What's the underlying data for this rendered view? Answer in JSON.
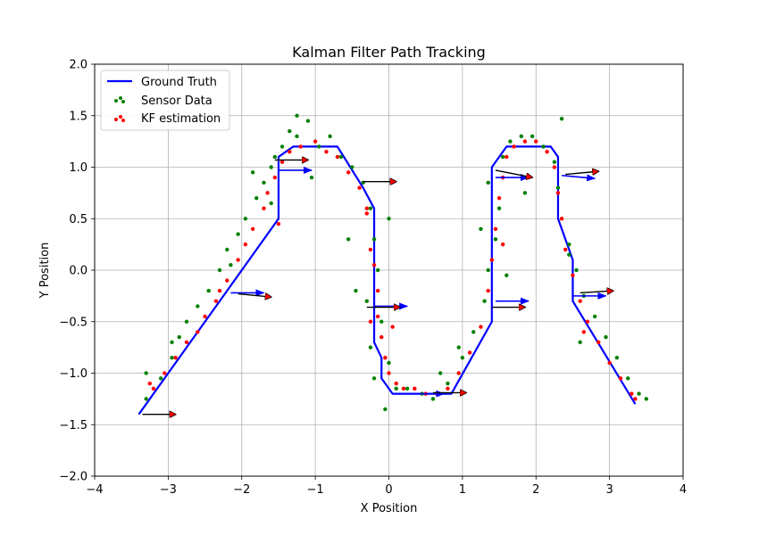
{
  "chart_data": {
    "type": "line",
    "title": "Kalman Filter Path Tracking",
    "xlabel": "X Position",
    "ylabel": "Y Position",
    "xlim": [
      -4,
      4
    ],
    "ylim": [
      -2.0,
      2.0
    ],
    "xticks": [
      -4,
      -3,
      -2,
      -1,
      0,
      1,
      2,
      3,
      4
    ],
    "xtick_labels": [
      "−4",
      "−3",
      "−2",
      "−1",
      "0",
      "1",
      "2",
      "3",
      "4"
    ],
    "yticks": [
      -2.0,
      -1.5,
      -1.0,
      -0.5,
      0.0,
      0.5,
      1.0,
      1.5,
      2.0
    ],
    "ytick_labels": [
      "−2.0",
      "−1.5",
      "−1.0",
      "−0.5",
      "0.0",
      "0.5",
      "1.0",
      "1.5",
      "2.0"
    ],
    "grid": true,
    "legend_position": "top-left",
    "legend": [
      "Ground Truth",
      "Sensor Data",
      "KF estimation"
    ],
    "colors": {
      "ground_truth": "#0000ff",
      "sensor": "#008000",
      "kf": "#ff0000",
      "arrow_kf": "#000000",
      "arrow_gt": "#0000ff"
    },
    "ground_truth": {
      "name": "Ground Truth",
      "x": [
        -3.4,
        -1.5,
        -1.5,
        -1.3,
        -0.7,
        -0.35,
        -0.2,
        -0.2,
        -0.1,
        -0.1,
        0.05,
        0.85,
        1.4,
        1.4,
        1.6,
        2.2,
        2.3,
        2.3,
        2.5,
        2.5,
        3.35,
        3.35
      ],
      "y": [
        -1.4,
        0.5,
        1.1,
        1.2,
        1.2,
        0.8,
        0.6,
        -0.7,
        -0.85,
        -1.05,
        -1.2,
        -1.2,
        -0.5,
        1.0,
        1.2,
        1.2,
        1.1,
        0.5,
        0.1,
        -0.3,
        -1.3,
        -1.3
      ]
    },
    "sensor_data": {
      "name": "Sensor Data",
      "x": [
        -3.3,
        -3.1,
        -2.95,
        -2.85,
        -2.75,
        -2.6,
        -2.45,
        -2.3,
        -2.2,
        -2.05,
        -1.95,
        -1.8,
        -1.7,
        -1.6,
        -1.55,
        -1.45,
        -1.35,
        -1.25,
        -1.1,
        -0.95,
        -0.8,
        -0.65,
        -0.5,
        -0.35,
        -0.25,
        -0.2,
        -0.15,
        -0.3,
        -0.1,
        -0.25,
        0.0,
        -0.2,
        0.1,
        0.25,
        0.45,
        0.6,
        0.8,
        1.0,
        1.15,
        1.3,
        1.35,
        1.45,
        1.5,
        1.35,
        1.55,
        1.65,
        1.8,
        1.95,
        2.1,
        2.25,
        2.3,
        2.35,
        2.45,
        2.55,
        2.65,
        2.8,
        2.95,
        3.1,
        3.25,
        3.4,
        3.5,
        2.6,
        2.45,
        1.6,
        1.25,
        -0.55,
        -0.45,
        0.0,
        -1.85,
        -2.15,
        -3.3,
        -1.25,
        -1.05,
        1.85,
        2.35,
        0.7,
        0.95,
        -0.05,
        -1.6,
        -2.95
      ],
      "y": [
        -1.25,
        -1.05,
        -0.85,
        -0.65,
        -0.5,
        -0.35,
        -0.2,
        0.0,
        0.2,
        0.35,
        0.5,
        0.7,
        0.85,
        1.0,
        1.1,
        1.2,
        1.35,
        1.3,
        1.45,
        1.2,
        1.3,
        1.1,
        1.0,
        0.85,
        0.6,
        0.3,
        0.0,
        -0.3,
        -0.5,
        -0.75,
        -0.9,
        -1.05,
        -1.15,
        -1.15,
        -1.2,
        -1.25,
        -1.1,
        -0.85,
        -0.6,
        -0.3,
        0.0,
        0.3,
        0.6,
        0.85,
        1.1,
        1.25,
        1.3,
        1.3,
        1.2,
        1.05,
        0.8,
        0.5,
        0.25,
        0.0,
        -0.25,
        -0.45,
        -0.65,
        -0.85,
        -1.05,
        -1.2,
        -1.25,
        -0.7,
        0.15,
        -0.05,
        0.4,
        0.3,
        -0.2,
        0.5,
        0.95,
        0.05,
        -1.0,
        1.5,
        0.9,
        0.75,
        1.47,
        -1.0,
        -0.75,
        -1.35,
        0.65,
        -0.7
      ]
    },
    "kf_estimation": {
      "name": "KF estimation",
      "x": [
        -3.2,
        -3.05,
        -2.9,
        -2.75,
        -2.6,
        -2.5,
        -2.35,
        -2.2,
        -2.05,
        -1.95,
        -1.85,
        -1.7,
        -1.65,
        -1.55,
        -1.45,
        -1.35,
        -1.2,
        -1.0,
        -0.85,
        -0.7,
        -0.55,
        -0.4,
        -0.3,
        -0.25,
        -0.2,
        -0.15,
        -0.15,
        -0.1,
        -0.05,
        0.0,
        0.1,
        0.2,
        0.35,
        0.5,
        0.65,
        0.8,
        0.95,
        1.1,
        1.25,
        1.35,
        1.4,
        1.45,
        1.5,
        1.55,
        1.6,
        1.7,
        1.85,
        2.0,
        2.15,
        2.25,
        2.3,
        2.35,
        2.4,
        2.5,
        2.6,
        2.7,
        2.85,
        3.0,
        3.15,
        3.3,
        3.35,
        2.65,
        1.55,
        -0.3,
        -0.25,
        0.05,
        -1.5,
        -2.3,
        -3.25
      ],
      "y": [
        -1.15,
        -1.0,
        -0.85,
        -0.7,
        -0.6,
        -0.45,
        -0.3,
        -0.1,
        0.1,
        0.25,
        0.4,
        0.6,
        0.75,
        0.9,
        1.05,
        1.15,
        1.2,
        1.25,
        1.15,
        1.1,
        0.95,
        0.8,
        0.55,
        0.2,
        0.05,
        -0.2,
        -0.45,
        -0.65,
        -0.85,
        -1.0,
        -1.1,
        -1.15,
        -1.15,
        -1.2,
        -1.2,
        -1.15,
        -1.0,
        -0.8,
        -0.55,
        -0.2,
        0.1,
        0.4,
        0.7,
        0.9,
        1.1,
        1.2,
        1.25,
        1.25,
        1.15,
        1.0,
        0.75,
        0.5,
        0.2,
        -0.05,
        -0.3,
        -0.5,
        -0.7,
        -0.9,
        -1.05,
        -1.2,
        -1.25,
        -0.6,
        0.25,
        0.6,
        -0.5,
        -0.55,
        0.45,
        -0.2,
        -1.1
      ]
    },
    "arrows_kf": [
      {
        "x": -3.35,
        "y": -1.4,
        "dx": 0.45,
        "dy": 0.0
      },
      {
        "x": -2.05,
        "y": -0.23,
        "dx": 0.45,
        "dy": -0.03
      },
      {
        "x": -1.55,
        "y": 1.07,
        "dx": 0.45,
        "dy": 0.0
      },
      {
        "x": -0.35,
        "y": 0.86,
        "dx": 0.45,
        "dy": 0.0
      },
      {
        "x": -0.3,
        "y": -0.36,
        "dx": 0.45,
        "dy": 0.0
      },
      {
        "x": 0.6,
        "y": -1.19,
        "dx": 0.45,
        "dy": 0.0
      },
      {
        "x": 1.4,
        "y": -0.36,
        "dx": 0.45,
        "dy": 0.0
      },
      {
        "x": 1.45,
        "y": 0.97,
        "dx": 0.5,
        "dy": -0.07
      },
      {
        "x": 2.4,
        "y": 0.93,
        "dx": 0.45,
        "dy": 0.03
      },
      {
        "x": 2.6,
        "y": -0.22,
        "dx": 0.45,
        "dy": 0.02
      }
    ],
    "arrows_gt": [
      {
        "x": -2.15,
        "y": -0.22,
        "dx": 0.45,
        "dy": 0.0
      },
      {
        "x": -1.5,
        "y": 0.97,
        "dx": 0.45,
        "dy": 0.0
      },
      {
        "x": -0.2,
        "y": -0.35,
        "dx": 0.45,
        "dy": 0.0
      },
      {
        "x": 0.3,
        "y": -1.2,
        "dx": 0.45,
        "dy": 0.0
      },
      {
        "x": 1.45,
        "y": -0.3,
        "dx": 0.45,
        "dy": 0.0
      },
      {
        "x": 1.45,
        "y": 0.9,
        "dx": 0.45,
        "dy": 0.0
      },
      {
        "x": 2.35,
        "y": 0.92,
        "dx": 0.45,
        "dy": -0.03
      },
      {
        "x": 2.5,
        "y": -0.25,
        "dx": 0.45,
        "dy": 0.0
      }
    ]
  }
}
